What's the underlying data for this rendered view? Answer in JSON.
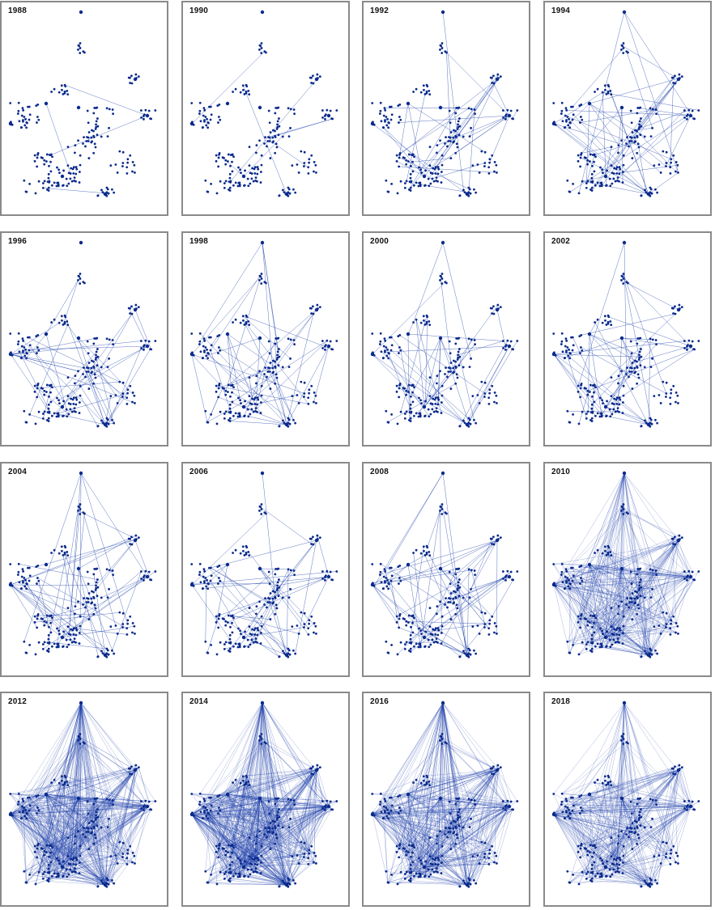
{
  "figure": {
    "panel_labels": [
      "1988",
      "1990",
      "1992",
      "1994",
      "1996",
      "1998",
      "2000",
      "2002",
      "2004",
      "2006",
      "2008",
      "2010",
      "2012",
      "2014",
      "2016",
      "2018"
    ],
    "node_color": "#0a2a8c",
    "edge_color": "#1a3da8",
    "border_color": "#8a8a8a",
    "panels_per_row": 4
  }
}
